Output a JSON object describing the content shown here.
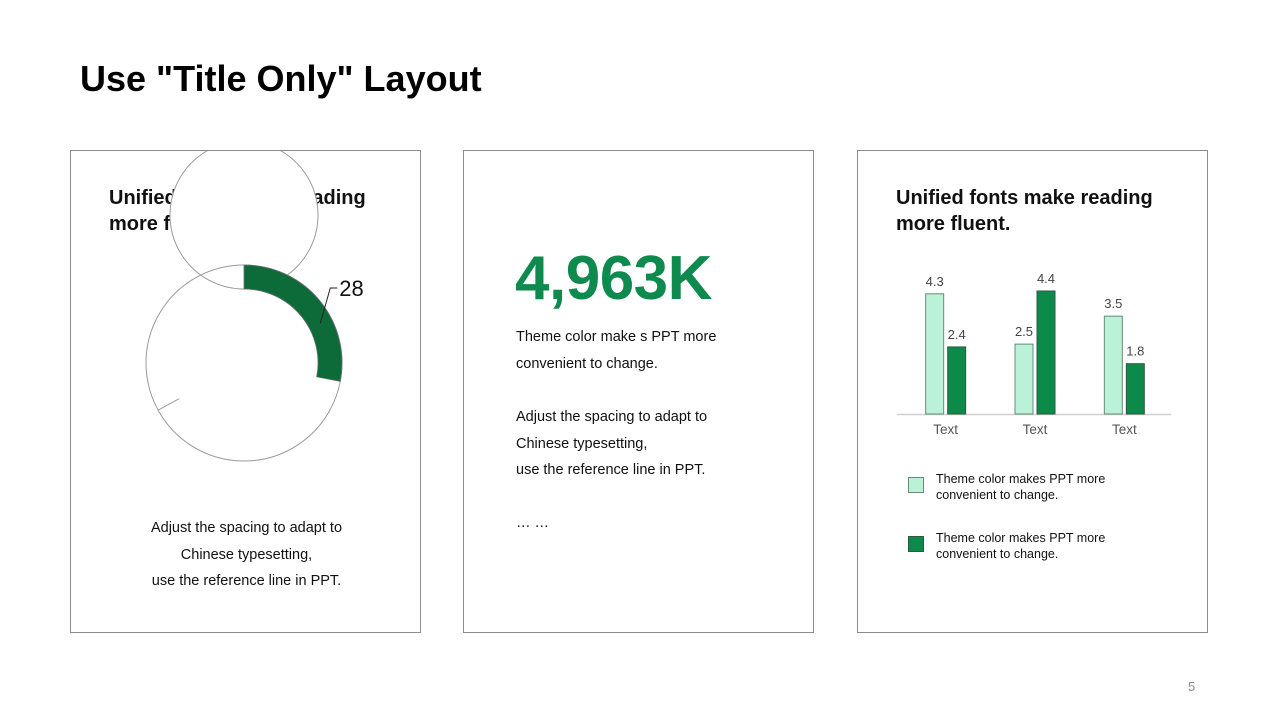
{
  "slide": {
    "title": "Use \"Title Only\" Layout",
    "page_number": "5"
  },
  "colors": {
    "accent": "#0f8a4f",
    "dark_green": "#0c6b38",
    "light_green": "#b9f2d6",
    "border": "#8c8c8c"
  },
  "left_card": {
    "heading_line1": "Unified fonts make reading",
    "heading_line2": "more fluent.",
    "donut": {
      "value": 28,
      "total": 100,
      "label": "28"
    },
    "caption_line1": "Adjust the spacing to adapt to",
    "caption_line2": "Chinese typesetting,",
    "caption_line3": "use the reference line in PPT."
  },
  "middle_card": {
    "big_number": "4,963K",
    "p1_line1": "Theme  color make s PPT more",
    "p1_line2": "convenient  to change.",
    "p2_line1": "Adjust the spacing to adapt to",
    "p2_line2": "Chinese  typesetting,",
    "p2_line3": "use the reference line  in PPT.",
    "ellipsis": "… …"
  },
  "right_card": {
    "heading_line1": "Unified fonts make reading",
    "heading_line2": "more fluent."
  },
  "chart_data": {
    "type": "bar",
    "categories": [
      "Text",
      "Text",
      "Text"
    ],
    "series": [
      {
        "values": [
          4.3,
          2.5,
          3.5
        ],
        "color": "#b9f2d6"
      },
      {
        "values": [
          2.4,
          4.4,
          1.8
        ],
        "color": "#0c8a4a"
      }
    ],
    "data_labels": [
      [
        "4.3",
        "2.5",
        "3.5"
      ],
      [
        "2.4",
        "4.4",
        "1.8"
      ]
    ],
    "ylim": [
      0,
      4.4
    ],
    "grid": false,
    "legend": [
      {
        "line1": "Theme  color makes PPT more",
        "line2": "convenient  to change."
      },
      {
        "line1": "Theme  color makes PPT more",
        "line2": "convenient  to change."
      }
    ],
    "legend_position": "bottom"
  }
}
